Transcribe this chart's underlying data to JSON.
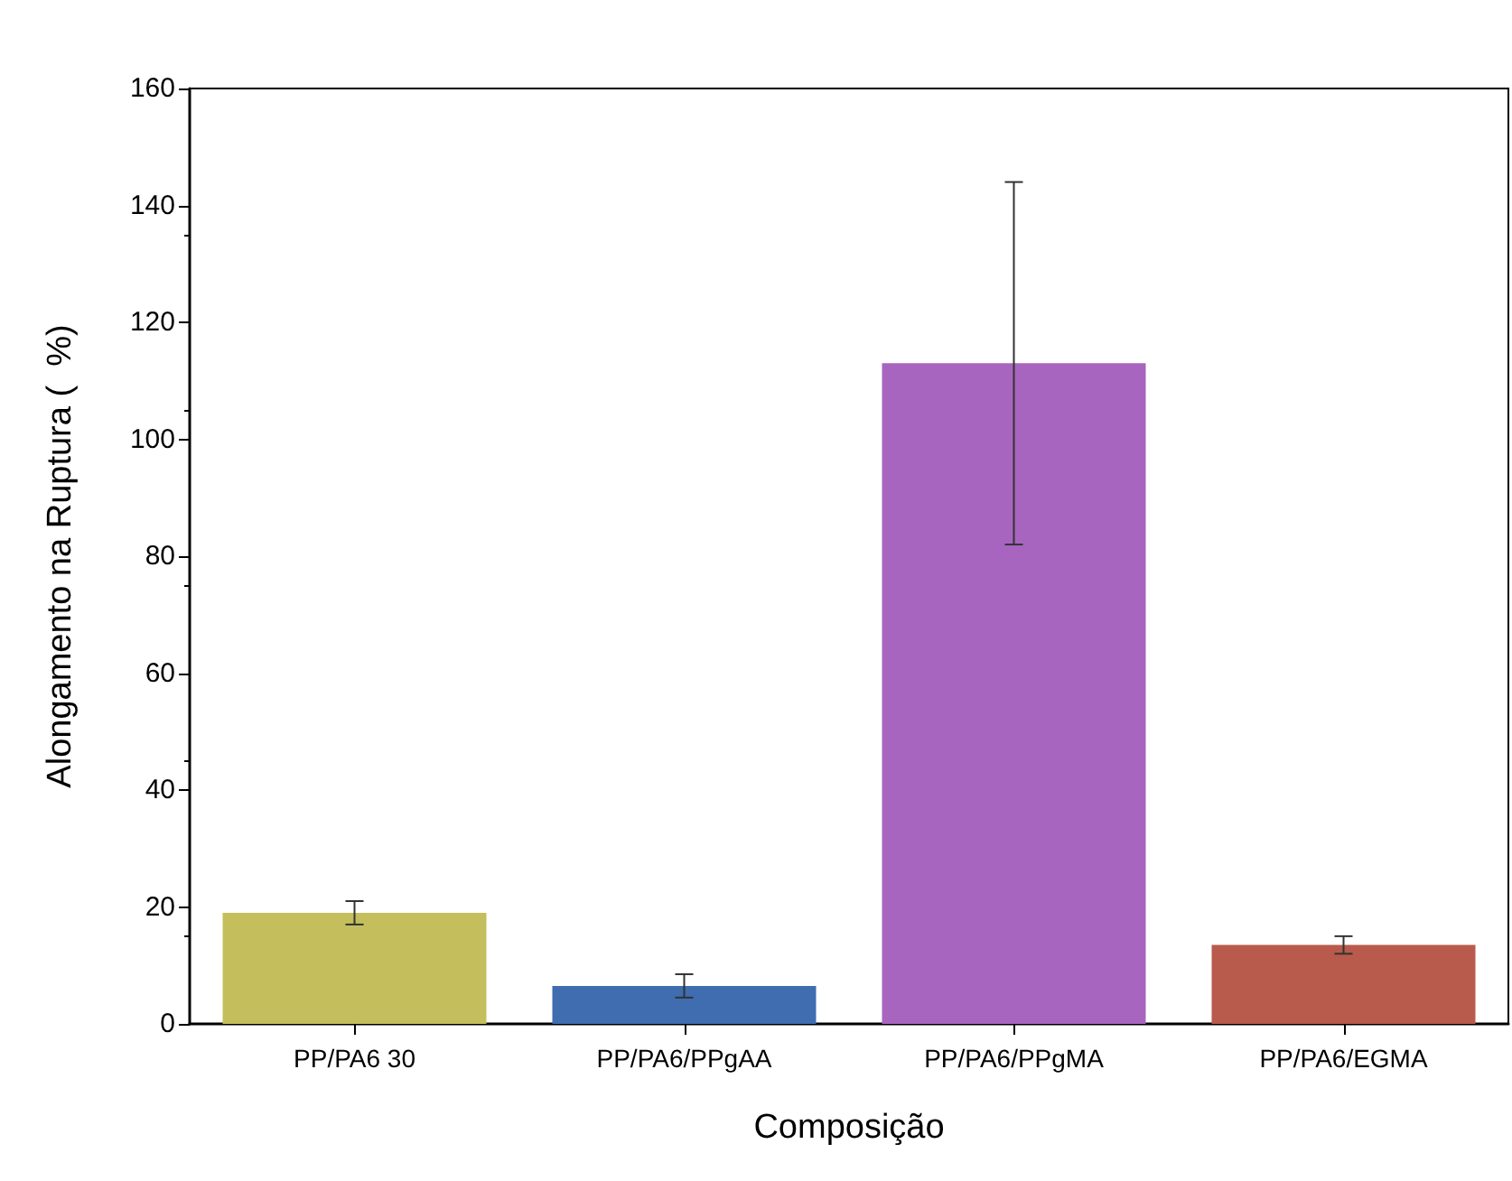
{
  "chart_data": {
    "type": "bar",
    "xlabel": "Composição",
    "ylabel": "Alongamento na Ruptura (  %)",
    "categories": [
      "PP/PA6 30",
      "PP/PA6/PPgAA",
      "PP/PA6/PPgMA",
      "PP/PA6/EGMA"
    ],
    "values": [
      19,
      6.5,
      113,
      13.5
    ],
    "errors": [
      2,
      2,
      31,
      1.5
    ],
    "colors": [
      "#c4bf5c",
      "#3f6db0",
      "#a865bf",
      "#b85b4c"
    ],
    "ylim": [
      0,
      160
    ],
    "yticks": [
      0,
      20,
      40,
      60,
      80,
      100,
      120,
      140,
      160
    ],
    "grid": false
  }
}
